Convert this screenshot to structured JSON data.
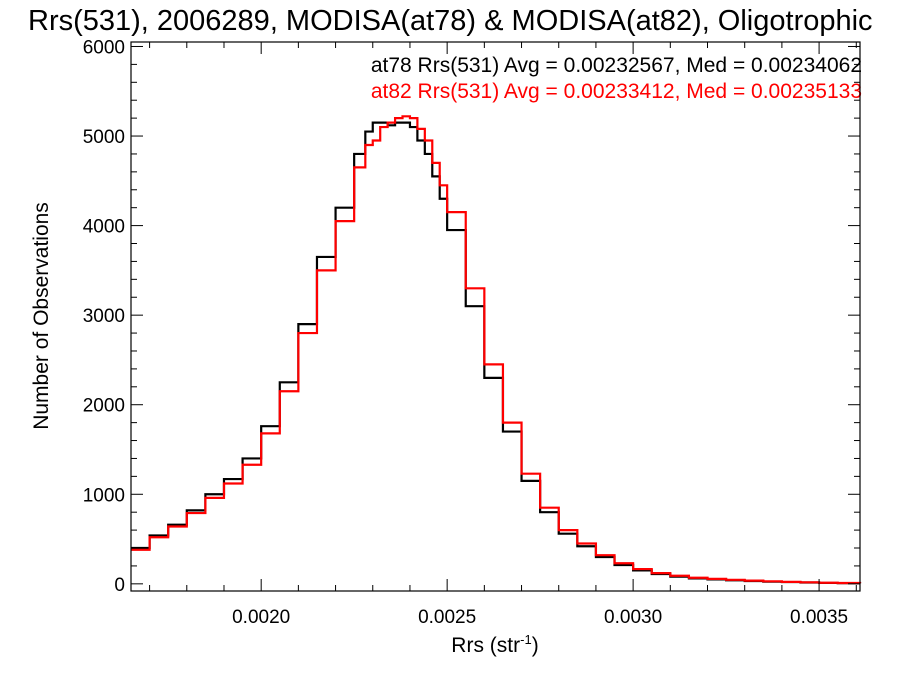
{
  "chart_data": {
    "type": "line",
    "title": "Rrs(531), 2006289, MODISA(at78) & MODISA(at82), Oligotrophic",
    "xlabel": "Rrs (str",
    "xlabel_sup": "-1",
    "xlabel_suffix": ")",
    "ylabel": "Number of Observations",
    "xlim": [
      0.00165,
      0.00361
    ],
    "ylim": [
      -80,
      6050
    ],
    "x_ticks": [
      {
        "value": 0.002,
        "label": "0.0020"
      },
      {
        "value": 0.0025,
        "label": "0.0025"
      },
      {
        "value": 0.003,
        "label": "0.0030"
      },
      {
        "value": 0.0035,
        "label": "0.0035"
      }
    ],
    "y_ticks": [
      {
        "value": 0,
        "label": "0"
      },
      {
        "value": 1000,
        "label": "1000"
      },
      {
        "value": 2000,
        "label": "2000"
      },
      {
        "value": 3000,
        "label": "3000"
      },
      {
        "value": 4000,
        "label": "4000"
      },
      {
        "value": 5000,
        "label": "5000"
      },
      {
        "value": 6000,
        "label": "6000"
      }
    ],
    "grid": false,
    "legend_position": "top-right",
    "series": [
      {
        "name": "at78",
        "color": "#000000",
        "legend_text": "at78 Rrs(531) Avg = 0.00232567, Med = 0.00234062",
        "x": [
          0.00165,
          0.0017,
          0.00175,
          0.0018,
          0.00185,
          0.0019,
          0.00195,
          0.002,
          0.00205,
          0.0021,
          0.00215,
          0.0022,
          0.00225,
          0.00228,
          0.0023,
          0.00232,
          0.00234,
          0.00236,
          0.00238,
          0.0024,
          0.00242,
          0.00244,
          0.00246,
          0.00248,
          0.0025,
          0.00255,
          0.0026,
          0.00265,
          0.0027,
          0.00275,
          0.0028,
          0.00285,
          0.0029,
          0.00295,
          0.003,
          0.00305,
          0.0031,
          0.00315,
          0.0032,
          0.00325,
          0.0033,
          0.00335,
          0.0034,
          0.00345,
          0.0035,
          0.00355,
          0.00361
        ],
        "y": [
          400,
          540,
          660,
          820,
          1000,
          1170,
          1400,
          1760,
          2250,
          2900,
          3650,
          4200,
          4800,
          5050,
          5150,
          5150,
          5120,
          5150,
          5150,
          5100,
          4950,
          4800,
          4550,
          4300,
          3950,
          3100,
          2300,
          1700,
          1150,
          800,
          560,
          420,
          300,
          210,
          150,
          110,
          80,
          60,
          50,
          40,
          32,
          25,
          20,
          15,
          10,
          8,
          5
        ]
      },
      {
        "name": "at82",
        "color": "#ff0000",
        "legend_text": "at82 Rrs(531) Avg = 0.00233412, Med = 0.00235133",
        "x": [
          0.00165,
          0.0017,
          0.00175,
          0.0018,
          0.00185,
          0.0019,
          0.00195,
          0.002,
          0.00205,
          0.0021,
          0.00215,
          0.0022,
          0.00225,
          0.00228,
          0.0023,
          0.00232,
          0.00234,
          0.00236,
          0.00238,
          0.0024,
          0.00242,
          0.00244,
          0.00246,
          0.00248,
          0.0025,
          0.00255,
          0.0026,
          0.00265,
          0.0027,
          0.00275,
          0.0028,
          0.00285,
          0.0029,
          0.00295,
          0.003,
          0.00305,
          0.0031,
          0.00315,
          0.0032,
          0.00325,
          0.0033,
          0.00335,
          0.0034,
          0.00345,
          0.0035,
          0.00355,
          0.00361
        ],
        "y": [
          380,
          520,
          640,
          790,
          960,
          1120,
          1330,
          1680,
          2150,
          2800,
          3500,
          4050,
          4650,
          4900,
          4950,
          5100,
          5150,
          5200,
          5220,
          5200,
          5080,
          4950,
          4700,
          4450,
          4150,
          3300,
          2450,
          1800,
          1230,
          850,
          600,
          450,
          320,
          230,
          165,
          120,
          90,
          68,
          55,
          45,
          36,
          28,
          22,
          17,
          12,
          9,
          6
        ]
      }
    ]
  }
}
